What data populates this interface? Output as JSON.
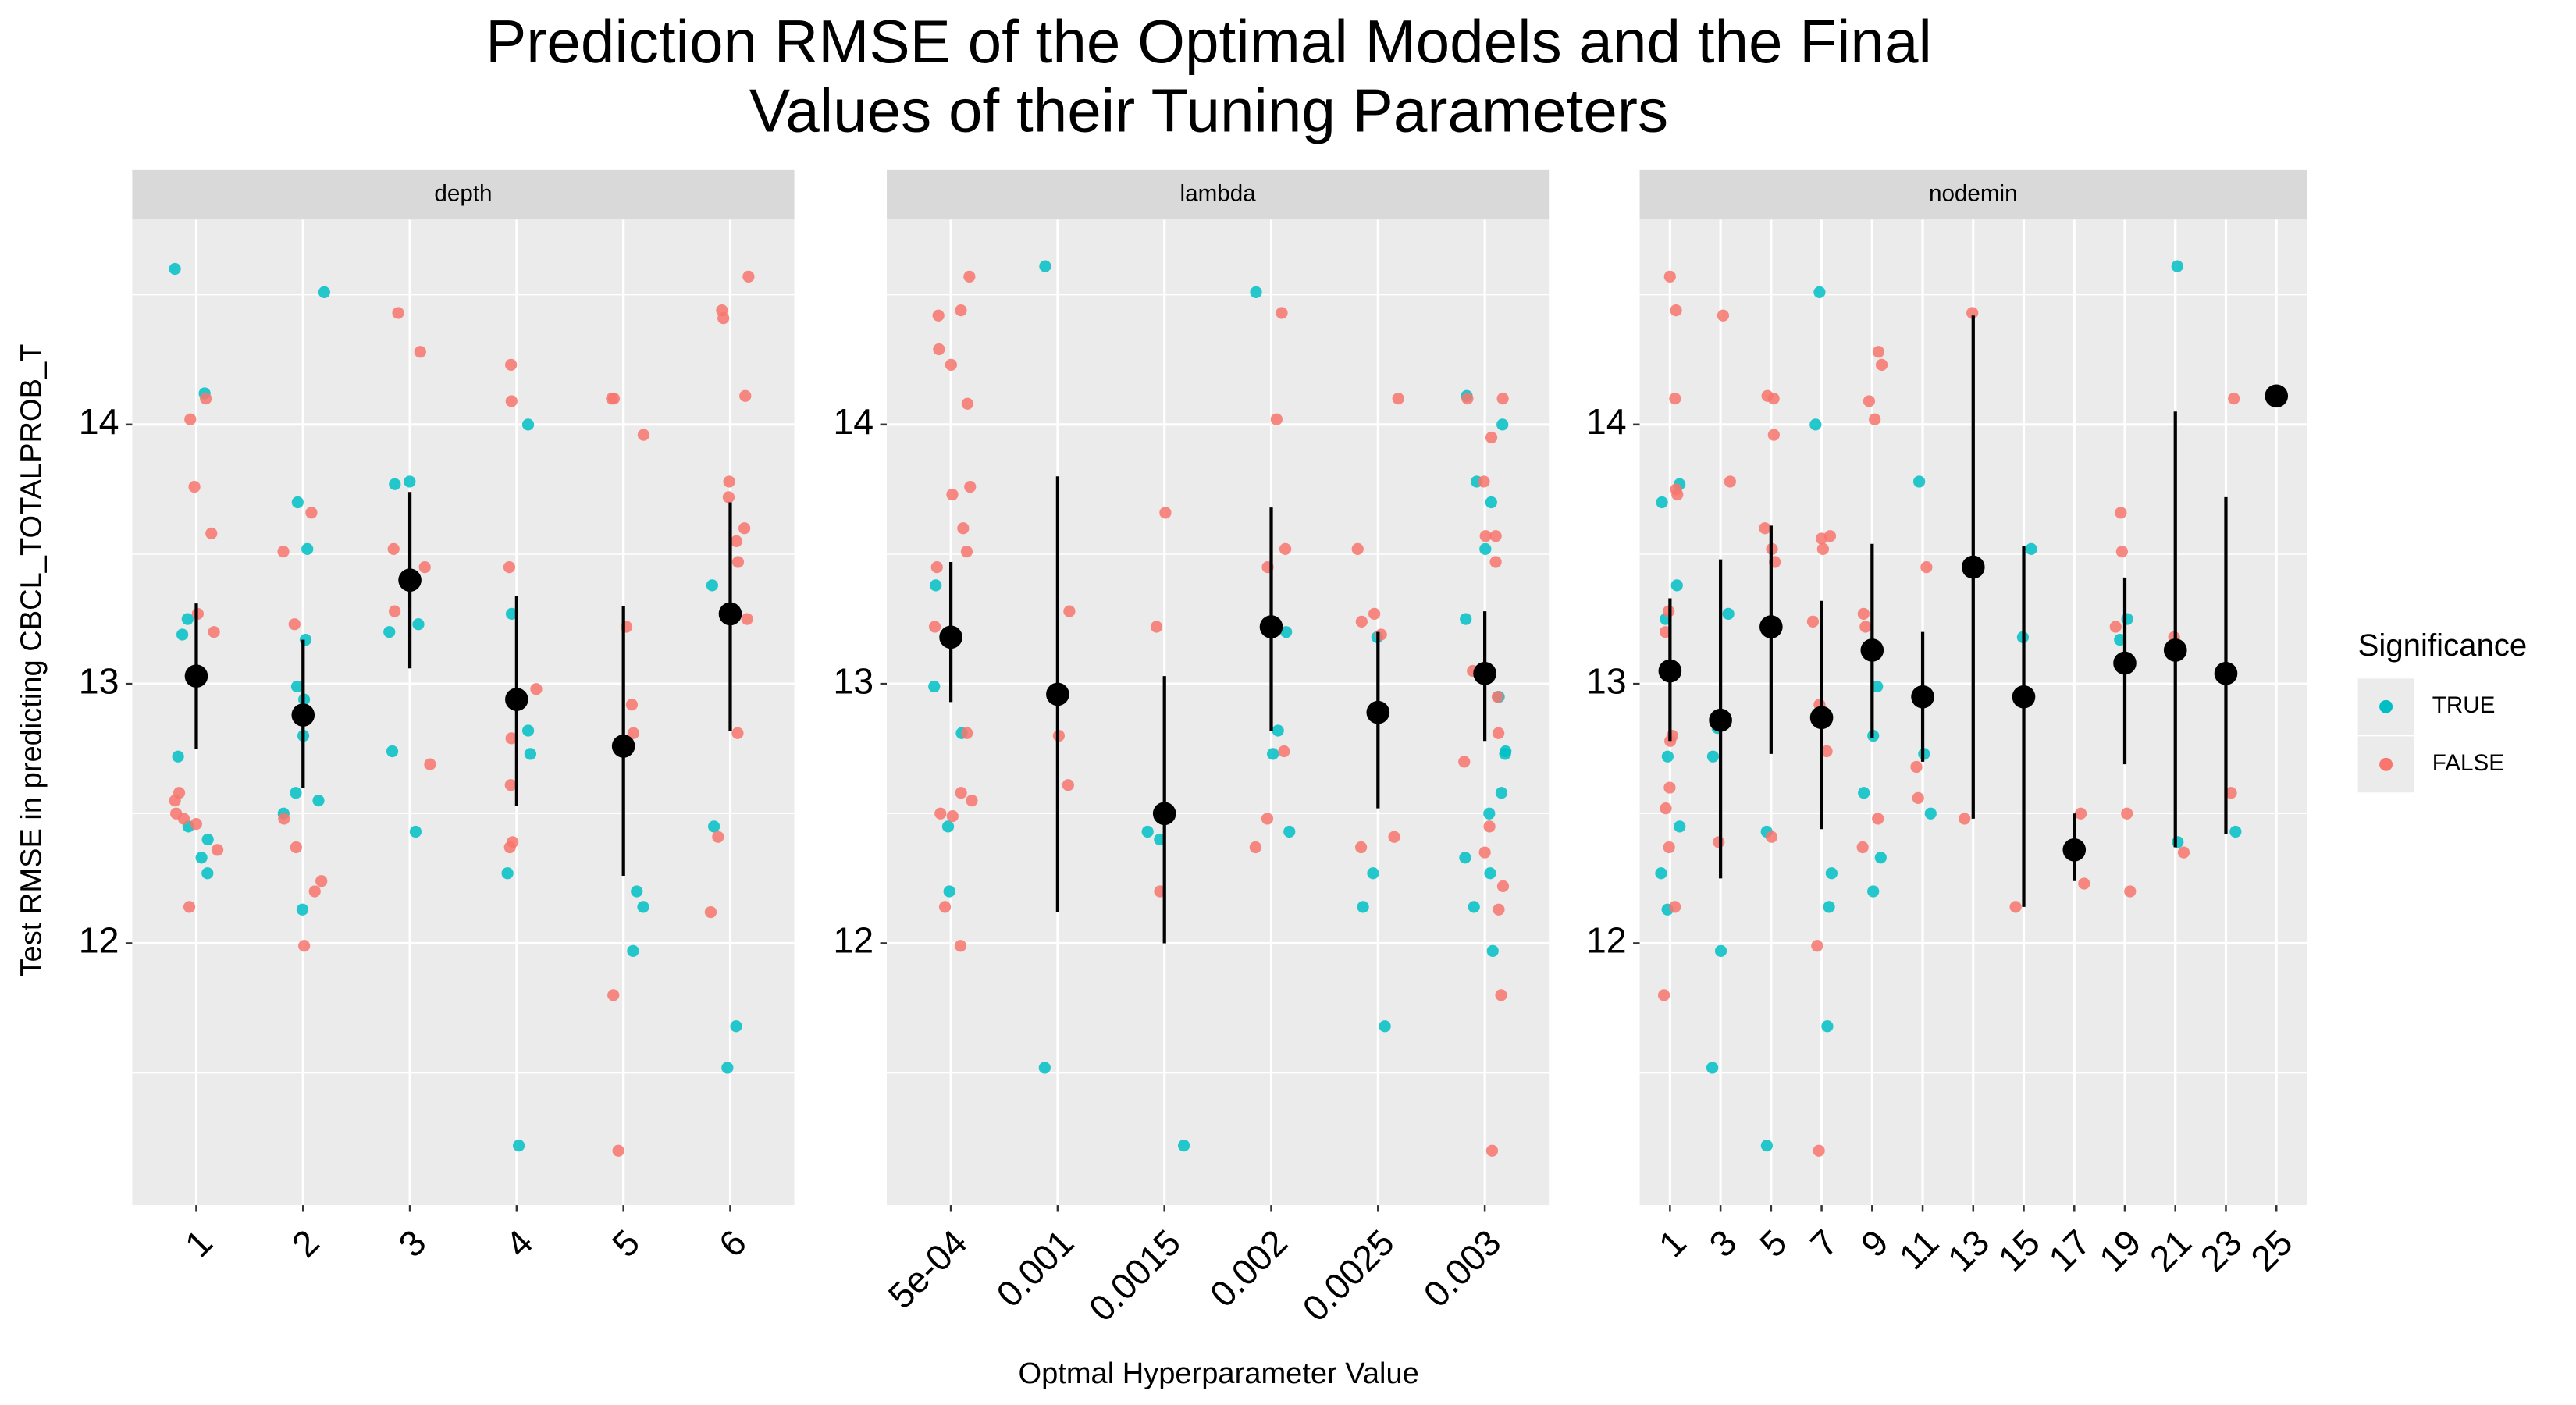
{
  "chart_data": {
    "type": "scatter",
    "title_lines": [
      "Prediction RMSE of the Optimal Models and the Final",
      "Values of their Tuning Parameters"
    ],
    "xlabel": "Optmal Hyperparameter Value",
    "ylabel": "Test RMSE in predicting CBCL_TOTALPROB_T",
    "legend_title": "Significance",
    "series_names": [
      "TRUE",
      "FALSE"
    ],
    "series_colors": [
      "#00BFC4",
      "#F8766D"
    ],
    "mean_color": "#000000",
    "ylim": [
      10.99,
      14.79
    ],
    "yticks": [
      12,
      13,
      14
    ],
    "grid": true,
    "facets": [
      {
        "label": "depth",
        "categories": [
          "1",
          "2",
          "3",
          "4",
          "5",
          "6"
        ],
        "means": [
          13.03,
          12.88,
          13.4,
          12.94,
          12.76,
          13.27
        ],
        "lower": [
          12.75,
          12.6,
          13.06,
          12.53,
          12.26,
          12.82
        ],
        "upper": [
          13.31,
          13.17,
          13.74,
          13.34,
          13.3,
          13.7
        ],
        "series": [
          {
            "name": "TRUE",
            "values": [
              [
                14.6,
                14.12,
                13.25,
                13.19,
                12.72,
                12.45,
                12.4,
                12.33,
                12.27
              ],
              [
                14.51,
                13.7,
                13.52,
                13.17,
                12.99,
                12.94,
                12.8,
                12.58,
                12.55,
                12.5,
                12.13
              ],
              [
                13.78,
                13.77,
                13.23,
                13.2,
                12.74,
                12.43
              ],
              [
                14.0,
                13.27,
                12.82,
                12.73,
                12.27,
                11.22
              ],
              [
                12.2,
                12.14,
                11.97
              ],
              [
                13.38,
                12.45,
                11.68,
                11.52
              ]
            ]
          },
          {
            "name": "FALSE",
            "values": [
              [
                14.1,
                14.02,
                13.76,
                13.58,
                13.27,
                13.2,
                12.58,
                12.55,
                12.5,
                12.48,
                12.46,
                12.36,
                12.14
              ],
              [
                13.66,
                13.51,
                13.23,
                12.88,
                12.48,
                12.37,
                12.24,
                12.2,
                11.99
              ],
              [
                14.43,
                14.28,
                13.52,
                13.45,
                13.28,
                12.69
              ],
              [
                14.23,
                14.09,
                13.45,
                12.98,
                12.79,
                12.61,
                12.39,
                12.37
              ],
              [
                14.1,
                14.1,
                13.96,
                13.22,
                12.92,
                12.81,
                12.75,
                11.8,
                11.2
              ],
              [
                14.57,
                14.44,
                14.41,
                14.11,
                13.78,
                13.72,
                13.6,
                13.55,
                13.47,
                13.25,
                12.81,
                12.41,
                12.12
              ]
            ]
          }
        ]
      },
      {
        "label": "lambda",
        "categories": [
          "5e-04",
          "0.001",
          "0.0015",
          "0.002",
          "0.0025",
          "0.003"
        ],
        "means": [
          13.18,
          12.96,
          12.5,
          13.22,
          12.89,
          13.04
        ],
        "lower": [
          12.93,
          12.12,
          12.0,
          12.82,
          12.52,
          12.78
        ],
        "upper": [
          13.47,
          13.8,
          13.03,
          13.68,
          13.2,
          13.28
        ],
        "series": [
          {
            "name": "TRUE",
            "values": [
              [
                13.38,
                12.99,
                12.81,
                12.45,
                12.2
              ],
              [
                14.61,
                11.52
              ],
              [
                12.43,
                12.4,
                11.22
              ],
              [
                14.51,
                13.2,
                12.82,
                12.73,
                12.43
              ],
              [
                13.18,
                12.27,
                12.14,
                11.68
              ],
              [
                14.11,
                14.0,
                13.78,
                13.7,
                13.52,
                13.25,
                12.95,
                12.74,
                12.73,
                12.58,
                12.5,
                12.33,
                12.27,
                12.14,
                11.97
              ]
            ]
          },
          {
            "name": "FALSE",
            "values": [
              [
                14.57,
                14.44,
                14.42,
                14.29,
                14.23,
                14.08,
                13.76,
                13.73,
                13.6,
                13.51,
                13.45,
                13.22,
                12.81,
                12.58,
                12.55,
                12.5,
                12.49,
                12.14,
                11.99
              ],
              [
                13.28,
                12.8,
                12.61
              ],
              [
                13.66,
                13.22,
                12.2
              ],
              [
                14.43,
                14.02,
                13.52,
                13.45,
                12.74,
                12.48,
                12.37
              ],
              [
                14.1,
                13.52,
                13.27,
                13.24,
                13.19,
                12.41,
                12.37
              ],
              [
                14.1,
                14.1,
                13.95,
                13.78,
                13.57,
                13.57,
                13.47,
                13.05,
                12.95,
                12.81,
                12.7,
                12.45,
                12.35,
                12.22,
                12.13,
                11.8,
                11.2
              ]
            ]
          }
        ]
      },
      {
        "label": "nodemin",
        "categories": [
          "1",
          "3",
          "5",
          "7",
          "9",
          "11",
          "13",
          "15",
          "17",
          "19",
          "21",
          "23",
          "25"
        ],
        "means": [
          13.05,
          12.86,
          13.22,
          12.87,
          13.13,
          12.95,
          13.45,
          12.95,
          12.36,
          13.08,
          13.13,
          13.04,
          14.11
        ],
        "lower": [
          12.78,
          12.25,
          12.73,
          12.44,
          12.79,
          12.7,
          12.48,
          12.14,
          12.24,
          12.69,
          12.37,
          12.42,
          null
        ],
        "upper": [
          13.33,
          13.48,
          13.61,
          13.32,
          13.54,
          13.2,
          14.42,
          13.53,
          12.5,
          13.41,
          14.05,
          13.72,
          null
        ],
        "series": [
          {
            "name": "TRUE",
            "values": [
              [
                13.77,
                13.7,
                13.38,
                13.25,
                12.72,
                12.45,
                12.27,
                12.13
              ],
              [
                13.27,
                12.83,
                12.72,
                11.97,
                11.52
              ],
              [
                13.2,
                12.43,
                11.22
              ],
              [
                14.51,
                14.0,
                12.27,
                12.14,
                11.68
              ],
              [
                12.99,
                12.8,
                12.58,
                12.33,
                12.2
              ],
              [
                13.78,
                12.73,
                12.5
              ],
              [],
              [
                13.52,
                13.18
              ],
              [],
              [
                13.25,
                13.17
              ],
              [
                14.61,
                12.39
              ],
              [
                12.43
              ],
              []
            ]
          },
          {
            "name": "FALSE",
            "values": [
              [
                14.57,
                14.44,
                14.1,
                13.75,
                13.73,
                13.28,
                13.2,
                12.8,
                12.78,
                12.6,
                12.52,
                12.37,
                12.14,
                11.8
              ],
              [
                14.42,
                13.78,
                12.39
              ],
              [
                14.11,
                14.1,
                13.96,
                13.6,
                13.52,
                13.47,
                13.23,
                12.41
              ],
              [
                13.57,
                13.56,
                13.52,
                13.24,
                12.92,
                12.74,
                11.99,
                11.2
              ],
              [
                14.28,
                14.23,
                14.09,
                14.02,
                13.27,
                13.22,
                12.48,
                12.37
              ],
              [
                13.45,
                12.68,
                12.56
              ],
              [
                14.43,
                12.48
              ],
              [
                12.14
              ],
              [
                12.5,
                12.23
              ],
              [
                13.66,
                13.51,
                13.22,
                12.5,
                12.2
              ],
              [
                13.18,
                12.35
              ],
              [
                14.1,
                12.58
              ],
              []
            ]
          }
        ]
      }
    ]
  }
}
